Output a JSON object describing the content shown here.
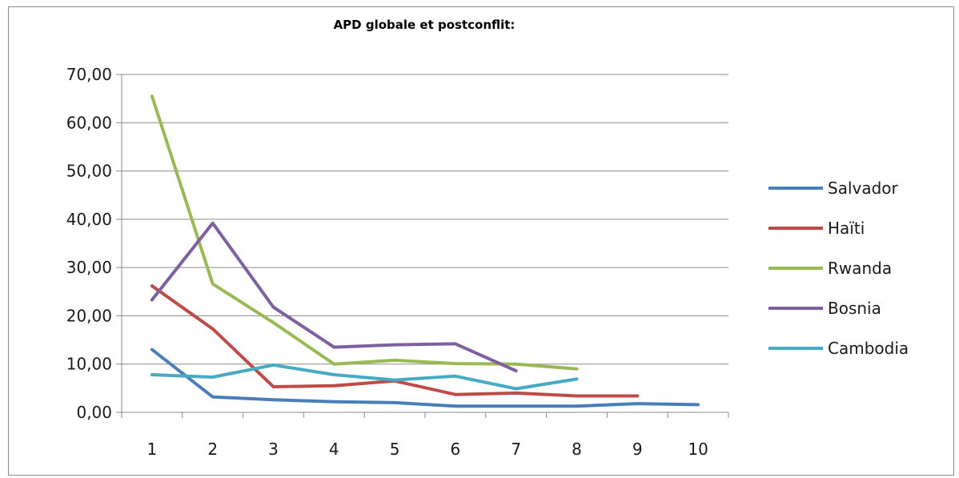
{
  "chart_data": {
    "type": "line",
    "title": "APD globale et postconflit:",
    "xlabel": "",
    "ylabel": "",
    "x": [
      1,
      2,
      3,
      4,
      5,
      6,
      7,
      8,
      9,
      10
    ],
    "ylim": [
      0,
      70
    ],
    "yticks": [
      "0,00",
      "10,00",
      "20,00",
      "30,00",
      "40,00",
      "50,00",
      "60,00",
      "70,00"
    ],
    "xticks": [
      "1",
      "2",
      "3",
      "4",
      "5",
      "6",
      "7",
      "8",
      "9",
      "10"
    ],
    "grid": true,
    "legend_position": "right",
    "series": [
      {
        "name": "Salvador",
        "color": "#4a7ebb",
        "values": [
          13.0,
          3.2,
          2.6,
          2.2,
          2.0,
          1.3,
          1.3,
          1.3,
          1.8,
          1.6
        ]
      },
      {
        "name": "Haïti",
        "color": "#be4b48",
        "values": [
          26.2,
          17.3,
          5.3,
          5.5,
          6.5,
          3.7,
          4.0,
          3.4,
          3.4,
          null
        ]
      },
      {
        "name": "Rwanda",
        "color": "#98b954",
        "values": [
          65.5,
          26.6,
          18.6,
          10.0,
          10.8,
          10.1,
          10.0,
          9.0,
          null,
          null
        ]
      },
      {
        "name": "Bosnia",
        "color": "#7d60a0",
        "values": [
          23.3,
          39.2,
          21.8,
          13.5,
          14.0,
          14.2,
          8.6,
          null,
          null,
          null
        ]
      },
      {
        "name": "Cambodia",
        "color": "#46aac5",
        "values": [
          7.8,
          7.3,
          9.8,
          7.8,
          6.7,
          7.5,
          4.9,
          6.9,
          null,
          null
        ]
      }
    ]
  }
}
